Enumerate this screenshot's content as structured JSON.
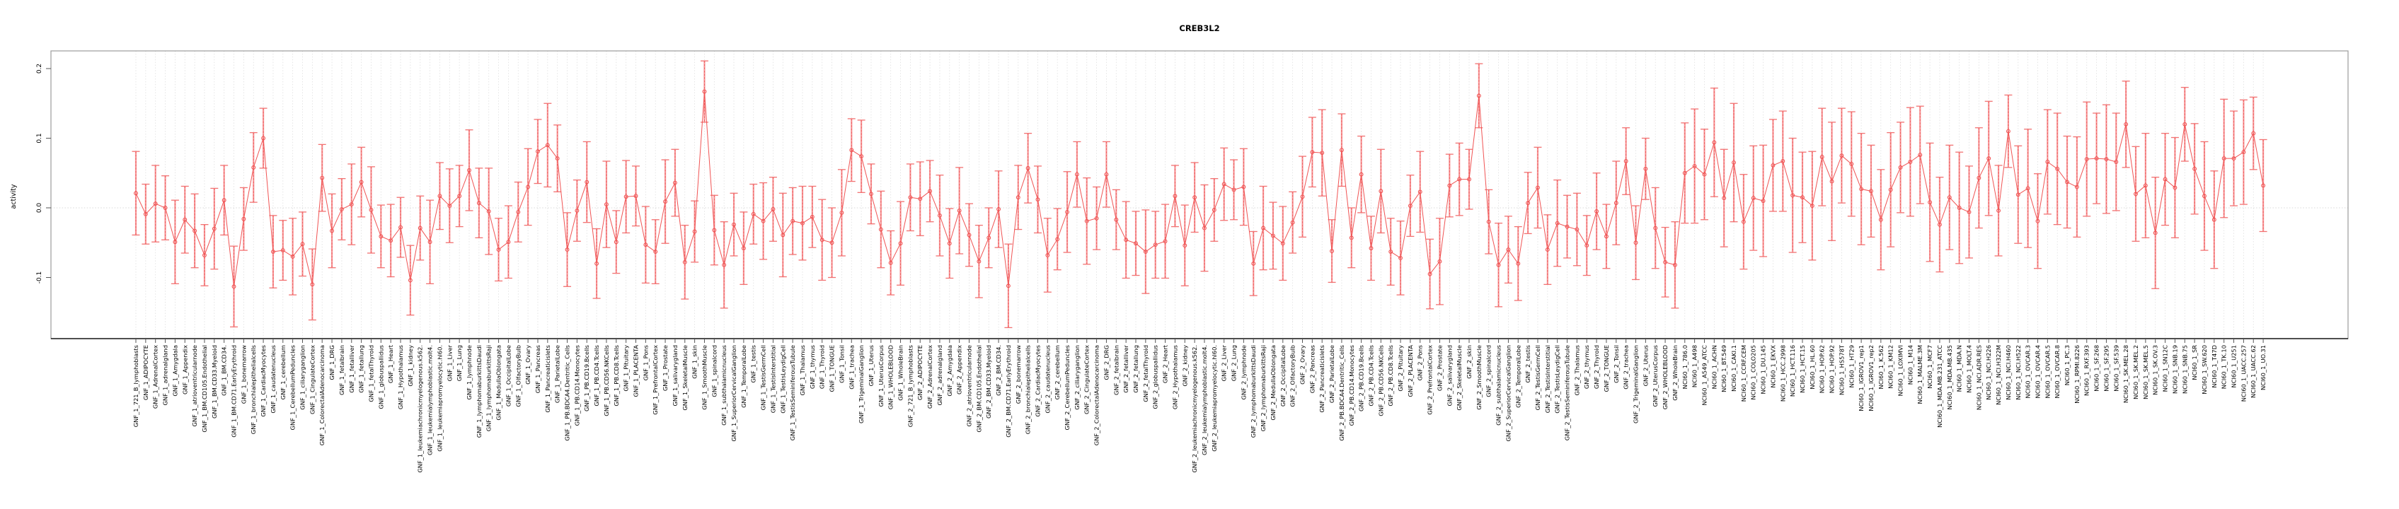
{
  "title": "CREB3L2",
  "colors": {
    "series": "#f05454",
    "error_bar": "#f7989a",
    "error_bar_dash": "#ee5b5b",
    "error_cap": "#f27272",
    "grid": "#dedede",
    "zero_line": "#d8d8d8",
    "box": "#9b9b9b",
    "axis": "#1a1a1a",
    "tick": "#555555"
  },
  "chart_data": {
    "type": "scatter",
    "title": "CREB3L2",
    "xlabel": "",
    "ylabel": "activity",
    "ylim": [
      -0.188,
      0.225
    ],
    "yticks": [
      -0.1,
      0.0,
      0.1,
      0.2
    ],
    "ytick_labels": [
      "-0.1",
      "0.0",
      "0.1",
      "0.2"
    ],
    "grid": "vertical dotted line per category; horizontal dotted line at y=0",
    "legend": "none",
    "marker": "open-circle",
    "error_bars": "symmetric, capped",
    "categories": [
      "GNF_1_721_B_lymphoblasts",
      "GNF_1_ADIPOCYTE",
      "GNF_1_AdrenalCortex",
      "GNF_1_adrenalgland",
      "GNF_1_Amygdala",
      "GNF_1_Appendix",
      "GNF_1_atrioventricularnode",
      "GNF_1_BM.CD105.Endothelial",
      "GNF_1_BM.CD33.Myeloid",
      "GNF_1_BM.CD34.",
      "GNF_1_BM.CD71.EarlyErythroid",
      "GNF_1_bonemarrow",
      "GNF_1_bronchialepithelialcells",
      "GNF_1_CardiacMyocytes",
      "GNF_1_caudatenucleus",
      "GNF_1_cerebellum",
      "GNF_1_CerebellumPeduncles",
      "GNF_1_ciliaryganglion",
      "GNF_1_CingulateCortex",
      "GNF_1_ColorectalAdenocarcinoma",
      "GNF_1_DRG",
      "GNF_1_fetalbrain",
      "GNF_1_fetalliver",
      "GNF_1_fetallung",
      "GNF_1_fetalThyroid",
      "GNF_1_globuspallidus",
      "GNF_1_Heart",
      "GNF_1_Hypothalamus",
      "GNF_1_kidney",
      "GNF_1_leukemiachronicmyelogenous.k562.",
      "GNF_1_leukemialymphoblastic.molt4.",
      "GNF_1_leukemiapromyelocytic.hl60.",
      "GNF_1_Liver",
      "GNF_1_Lung",
      "GNF_1_lymphnode",
      "GNF_1_lymphomaburkittsDaudi",
      "GNF_1_lymphomaburkittsRaji",
      "GNF_1_MedullaOblongata",
      "GNF_1_OccipitalLobe",
      "GNF_1_OlfactoryBulb",
      "GNF_1_Ovary",
      "GNF_1_Pancreas",
      "GNF_1_Pancreaticislets",
      "GNF_1_ParietalLobe",
      "GNF_1_PB.BDCA4.Dentritic_Cells",
      "GNF_1_PB.CD14.Monocytes",
      "GNF_1_PB.CD19.Bcells",
      "GNF_1_PB.CD4.Tcells",
      "GNF_1_PB.CD56.NKCells",
      "GNF_1_PB.CD8.Tcells",
      "GNF_1_Pituitary",
      "GNF_1_PLACENTA",
      "GNF_1_Pons",
      "GNF_1_PrefrontalCortex",
      "GNF_1_Prostate",
      "GNF_1_salivarygland",
      "GNF_1_SkeletalMuscle",
      "GNF_1_skin",
      "GNF_1_SmoothMuscle",
      "GNF_1_spinalcord",
      "GNF_1_subthalamicnucleus",
      "GNF_1_SuperiorCervicalGanglion",
      "GNF_1_TemporalLobe",
      "GNF_1_testis",
      "GNF_1_TestisGermCell",
      "GNF_1_TestisInterstitial",
      "GNF_1_TestisLeydigCell",
      "GNF_1_TestisSeminiferousTubule",
      "GNF_1_Thalamus",
      "GNF_1_thymus",
      "GNF_1_Thyroid",
      "GNF_1_TONGUE",
      "GNF_1_Tonsil",
      "GNF_1_trachea",
      "GNF_1_TrigeminalGanglion",
      "GNF_1_Uterus",
      "GNF_1_UterusCorpus",
      "GNF_1_WHOLEBLOOD",
      "GNF_1_WholeBrain",
      "GNF_2_721_B_lymphoblasts",
      "GNF_2_ADIPOCYTE",
      "GNF_2_AdrenalCortex",
      "GNF_2_adrenalgland",
      "GNF_2_Amygdala",
      "GNF_2_Appendix",
      "GNF_2_atrioventricularnode",
      "GNF_2_BM.CD105.Endothelial",
      "GNF_2_BM.CD33.Myeloid",
      "GNF_2_BM.CD34.",
      "GNF_2_BM.CD71.EarlyErythroid",
      "GNF_2_bonemarrow",
      "GNF_2_bronchialepithelialcells",
      "GNF_2_CardiacMyocytes",
      "GNF_2_caudatenucleus",
      "GNF_2_cerebellum",
      "GNF_2_CerebellumPeduncles",
      "GNF_2_ciliaryganglion",
      "GNF_2_CingulateCortex",
      "GNF_2_ColorectalAdenocarcinoma",
      "GNF_2_DRG",
      "GNF_2_fetalbrain",
      "GNF_2_fetalliver",
      "GNF_2_fetallung",
      "GNF_2_fetalThyroid",
      "GNF_2_globuspallidus",
      "GNF_2_Heart",
      "GNF_2_Hypothalamus",
      "GNF_2_kidney",
      "GNF_2_leukemiachronicmyelogenous.k562.",
      "GNF_2_leukemialymphoblastic.molt4.",
      "GNF_2_leukemiapromyelocytic.hl60.",
      "GNF_2_Liver",
      "GNF_2_Lung",
      "GNF_2_lymphnode",
      "GNF_2_lymphomaburkittsDaudi",
      "GNF_2_lymphomaburkittsRaji",
      "GNF_2_MedullaOblongata",
      "GNF_2_OccipitalLobe",
      "GNF_2_OlfactoryBulb",
      "GNF_2_Ovary",
      "GNF_2_Pancreas",
      "GNF_2_Pancreaticislets",
      "GNF_2_ParietalLobe",
      "GNF_2_PB.BDCA4.Dentritic_Cells",
      "GNF_2_PB.CD14.Monocytes",
      "GNF_2_PB.CD19.Bcells",
      "GNF_2_PB.CD4.Tcells",
      "GNF_2_PB.CD56.NKCells",
      "GNF_2_PB.CD8.Tcells",
      "GNF_2_Pituitary",
      "GNF_2_PLACENTA",
      "GNF_2_Pons",
      "GNF_2_PrefrontalCortex",
      "GNF_2_Prostate",
      "GNF_2_salivarygland",
      "GNF_2_SkeletalMuscle",
      "GNF_2_skin",
      "GNF_2_SmoothMuscle",
      "GNF_2_spinalcord",
      "GNF_2_subthalamicnucleus",
      "GNF_2_SuperiorCervicalGanglion",
      "GNF_2_TemporalLobe",
      "GNF_2_testis",
      "GNF_2_TestisGermCell",
      "GNF_2_TestisInterstitial",
      "GNF_2_TestisLeydigCell",
      "GNF_2_TestisSeminiferousTubule",
      "GNF_2_Thalamus",
      "GNF_2_thymus",
      "GNF_2_Thyroid",
      "GNF_2_TONGUE",
      "GNF_2_Tonsil",
      "GNF_2_trachea",
      "GNF_2_TrigeminalGanglion",
      "GNF_2_Uterus",
      "GNF_2_UterusCorpus",
      "GNF_2_WHOLEBLOOD",
      "GNF_2_WholeBrain",
      "NCI60_1_786.0",
      "NCI60_1_A498",
      "NCI60_1_A549_ATCC",
      "NCI60_1_ACHN",
      "NCI60_1_BT.549",
      "NCI60_1_CAKI.1",
      "NCI60_1_CCRF.CEM",
      "NCI60_1_COLO205",
      "NCI60_1_DU.145",
      "NCI60_1_EKVX",
      "NCI60_1_HCC.2998",
      "NCI60_1_HCT.116",
      "NCI60_1_HCT.15",
      "NCI60_1_HL.60",
      "NCI60_1_HOP.62",
      "NCI60_1_HOP.92",
      "NCI60_1_HS578T",
      "NCI60_1_HT29",
      "NCI60_1_IGROV1_rep1",
      "NCI60_1_IGROV1_rep2",
      "NCI60_1_K.562",
      "NCI60_1_KM12",
      "NCI60_1_LOXIMVI",
      "NCI60_1_M14",
      "NCI60_1_MALME.3M",
      "NCI60_1_MCF7",
      "NCI60_1_MDA.MB.231_ATCC",
      "NCI60_1_MDA.MB.435",
      "NCI60_1_MDA.N",
      "NCI60_1_MOLT.4",
      "NCI60_1_NCI.ADR.RES",
      "NCI60_1_NCI.H226",
      "NCI60_1_NCI.H322M",
      "NCI60_1_NCI.H460",
      "NCI60_1_NCI.H522",
      "NCI60_1_OVCAR.3",
      "NCI60_1_OVCAR.4",
      "NCI60_1_OVCAR.5",
      "NCI60_1_OVCAR.8",
      "NCI60_1_PC.3",
      "NCI60_1_RPMI.8226",
      "NCI60_1_RXF.393",
      "NCI60_1_SF.268",
      "NCI60_1_SF.295",
      "NCI60_1_SF.539",
      "NCI60_1_SK.MEL.28",
      "NCI60_1_SK.MEL.2",
      "NCI60_1_SK.MEL.5",
      "NCI60_1_SK.OV.3",
      "NCI60_1_SN12C",
      "NCI60_1_SNB.19",
      "NCI60_1_SNB.75",
      "NCI60_1_SR",
      "NCI60_1_SW.620",
      "NCI60_1_T47D",
      "NCI60_1_TK.10",
      "NCI60_1_U251",
      "NCI60_1_UACC.257",
      "NCI60_1_UACC.62",
      "NCI60_1_UO.31"
    ],
    "means": [
      0.021,
      -0.009,
      0.006,
      0.0,
      -0.049,
      -0.017,
      -0.033,
      -0.068,
      -0.03,
      0.011,
      -0.113,
      -0.016,
      0.058,
      0.1,
      -0.063,
      -0.061,
      -0.07,
      -0.052,
      -0.11,
      0.043,
      -0.033,
      -0.002,
      0.005,
      0.037,
      -0.003,
      -0.041,
      -0.047,
      -0.028,
      -0.104,
      -0.029,
      -0.049,
      0.017,
      0.003,
      0.017,
      0.054,
      0.007,
      -0.005,
      -0.06,
      -0.049,
      -0.006,
      0.03,
      0.081,
      0.09,
      0.071,
      -0.06,
      -0.004,
      0.037,
      -0.08,
      0.005,
      -0.049,
      0.016,
      0.017,
      -0.053,
      -0.063,
      0.009,
      0.036,
      -0.078,
      -0.034,
      0.167,
      -0.032,
      -0.082,
      -0.024,
      -0.058,
      -0.009,
      -0.019,
      -0.002,
      -0.039,
      -0.019,
      -0.022,
      -0.013,
      -0.046,
      -0.05,
      -0.007,
      0.083,
      0.074,
      0.02,
      -0.031,
      -0.079,
      -0.051,
      0.015,
      0.013,
      0.024,
      -0.011,
      -0.051,
      -0.004,
      -0.039,
      -0.077,
      -0.043,
      -0.002,
      -0.112,
      0.015,
      0.057,
      0.012,
      -0.068,
      -0.045,
      -0.006,
      0.048,
      -0.019,
      -0.015,
      0.048,
      -0.017,
      -0.046,
      -0.051,
      -0.063,
      -0.053,
      -0.048,
      0.017,
      -0.054,
      0.015,
      -0.029,
      -0.003,
      0.034,
      0.026,
      0.03,
      -0.08,
      -0.029,
      -0.04,
      -0.051,
      -0.021,
      0.016,
      0.08,
      0.079,
      -0.062,
      0.083,
      -0.043,
      0.048,
      -0.058,
      0.024,
      -0.063,
      -0.072,
      0.003,
      0.023,
      -0.095,
      -0.077,
      0.032,
      0.041,
      0.041,
      0.161,
      -0.02,
      -0.082,
      -0.06,
      -0.08,
      0.007,
      0.029,
      -0.06,
      -0.022,
      -0.027,
      -0.031,
      -0.054,
      -0.005,
      -0.041,
      0.007,
      0.067,
      -0.05,
      0.056,
      -0.029,
      -0.078,
      -0.082,
      0.05,
      0.06,
      0.048,
      0.094,
      0.014,
      0.065,
      -0.02,
      0.014,
      0.01,
      0.061,
      0.067,
      0.018,
      0.015,
      0.003,
      0.073,
      0.038,
      0.075,
      0.063,
      0.027,
      0.024,
      -0.017,
      0.026,
      0.058,
      0.066,
      0.076,
      0.008,
      -0.024,
      0.015,
      0.0,
      -0.006,
      0.043,
      0.071,
      -0.004,
      0.11,
      0.019,
      0.028,
      -0.019,
      0.066,
      0.056,
      0.037,
      0.03,
      0.07,
      0.071,
      0.07,
      0.066,
      0.12,
      0.02,
      0.032,
      -0.036,
      0.041,
      0.029,
      0.12,
      0.056,
      0.017,
      -0.017,
      0.071,
      0.071,
      0.08,
      0.107,
      0.032
    ],
    "errors": [
      0.06,
      0.043,
      0.055,
      0.046,
      0.06,
      0.048,
      0.053,
      0.044,
      0.058,
      0.05,
      0.058,
      0.045,
      0.05,
      0.043,
      0.052,
      0.043,
      0.055,
      0.046,
      0.051,
      0.048,
      0.053,
      0.044,
      0.058,
      0.05,
      0.062,
      0.045,
      0.052,
      0.043,
      0.05,
      0.046,
      0.06,
      0.048,
      0.053,
      0.044,
      0.058,
      0.05,
      0.062,
      0.045,
      0.052,
      0.043,
      0.055,
      0.046,
      0.06,
      0.048,
      0.053,
      0.044,
      0.058,
      0.05,
      0.062,
      0.045,
      0.052,
      0.043,
      0.055,
      0.046,
      0.06,
      0.048,
      0.053,
      0.044,
      0.044,
      0.05,
      0.062,
      0.045,
      0.052,
      0.043,
      0.055,
      0.046,
      0.06,
      0.048,
      0.053,
      0.044,
      0.058,
      0.05,
      0.062,
      0.045,
      0.052,
      0.043,
      0.055,
      0.046,
      0.06,
      0.048,
      0.053,
      0.044,
      0.058,
      0.05,
      0.062,
      0.045,
      0.052,
      0.043,
      0.055,
      0.06,
      0.046,
      0.05,
      0.048,
      0.053,
      0.044,
      0.058,
      0.047,
      0.062,
      0.045,
      0.047,
      0.043,
      0.055,
      0.046,
      0.06,
      0.048,
      0.053,
      0.044,
      0.058,
      0.05,
      0.062,
      0.045,
      0.052,
      0.043,
      0.055,
      0.046,
      0.06,
      0.048,
      0.053,
      0.044,
      0.058,
      0.05,
      0.062,
      0.045,
      0.052,
      0.043,
      0.055,
      0.046,
      0.06,
      0.048,
      0.053,
      0.044,
      0.058,
      0.05,
      0.062,
      0.045,
      0.052,
      0.043,
      0.046,
      0.046,
      0.06,
      0.048,
      0.053,
      0.044,
      0.058,
      0.05,
      0.062,
      0.045,
      0.052,
      0.043,
      0.055,
      0.046,
      0.06,
      0.048,
      0.053,
      0.044,
      0.058,
      0.05,
      0.062,
      0.072,
      0.082,
      0.065,
      0.078,
      0.07,
      0.085,
      0.068,
      0.075,
      0.08,
      0.066,
      0.072,
      0.082,
      0.065,
      0.078,
      0.07,
      0.085,
      0.068,
      0.075,
      0.08,
      0.066,
      0.072,
      0.082,
      0.065,
      0.078,
      0.07,
      0.085,
      0.068,
      0.075,
      0.08,
      0.066,
      0.072,
      0.082,
      0.065,
      0.052,
      0.07,
      0.085,
      0.068,
      0.075,
      0.08,
      0.066,
      0.072,
      0.082,
      0.065,
      0.078,
      0.07,
      0.062,
      0.068,
      0.075,
      0.08,
      0.066,
      0.072,
      0.053,
      0.065,
      0.078,
      0.07,
      0.085,
      0.068,
      0.075,
      0.052,
      0.066
    ]
  }
}
